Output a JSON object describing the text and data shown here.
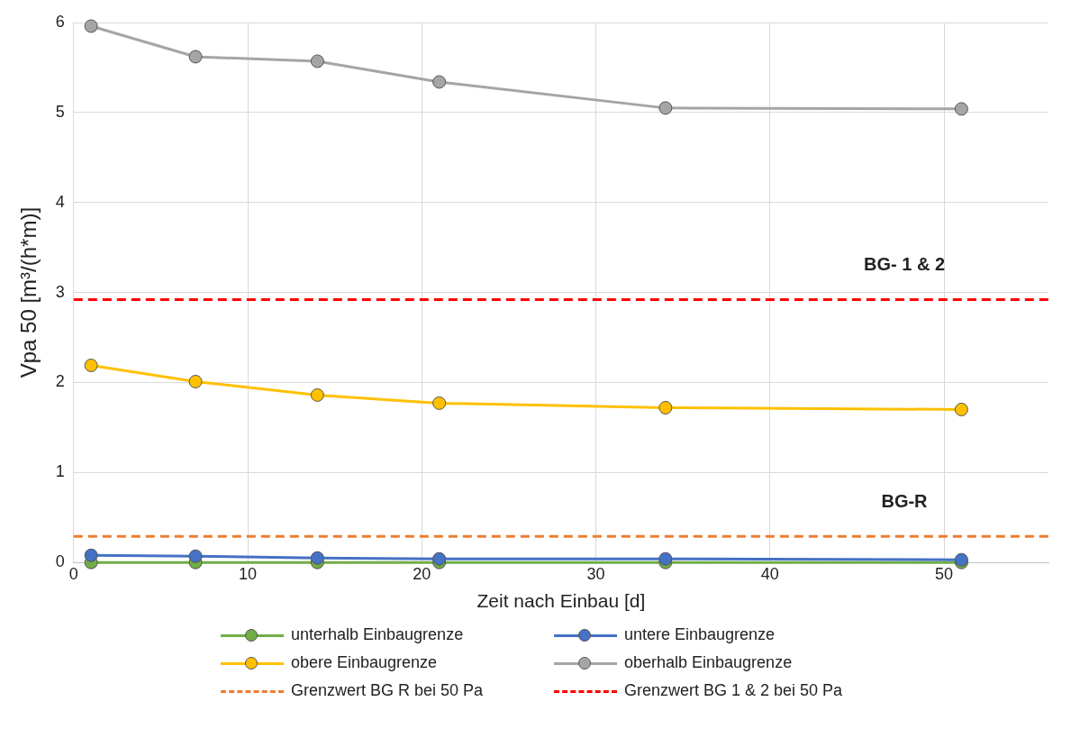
{
  "chart_data": {
    "type": "line",
    "xlabel": "Zeit nach Einbau [d]",
    "ylabel": "Vpa 50 [m³/(h*m)]",
    "x": [
      1,
      7,
      14,
      21,
      34,
      51
    ],
    "series": [
      {
        "name": "unterhalb Einbaugrenze",
        "color": "#70ad47",
        "values": [
          0,
          0,
          0,
          0,
          0,
          0
        ]
      },
      {
        "name": "untere Einbaugrenze",
        "color": "#4472c4",
        "values": [
          0.08,
          0.07,
          0.05,
          0.04,
          0.04,
          0.03
        ]
      },
      {
        "name": "obere Einbaugrenze",
        "color": "#ffc000",
        "values": [
          2.19,
          2.01,
          1.86,
          1.77,
          1.72,
          1.7
        ]
      },
      {
        "name": "oberhalb Einbaugrenze",
        "color": "#a5a5a5",
        "values": [
          5.96,
          5.62,
          5.57,
          5.34,
          5.05,
          5.04
        ]
      }
    ],
    "ref_lines": [
      {
        "axis": "y",
        "value": 0.29,
        "label": "Grenzwert BG R bei 50 Pa",
        "color": "#ed7d31",
        "line_style": "dashed"
      },
      {
        "axis": "y",
        "value": 2.92,
        "label": "Grenzwert BG 1 & 2 bei 50 Pa",
        "color": "#ff0000",
        "line_style": "dashed"
      }
    ],
    "annotations": [
      "BG- 1 & 2",
      "BG-R"
    ],
    "xlim": [
      0,
      56
    ],
    "xticks": [
      0,
      10,
      20,
      30,
      40,
      50
    ],
    "ylim": [
      0,
      6
    ],
    "yticks": [
      0,
      1,
      2,
      3,
      4,
      5,
      6
    ],
    "grid": true,
    "legend": "bottom",
    "marker": "circle",
    "line_style": "solid"
  }
}
